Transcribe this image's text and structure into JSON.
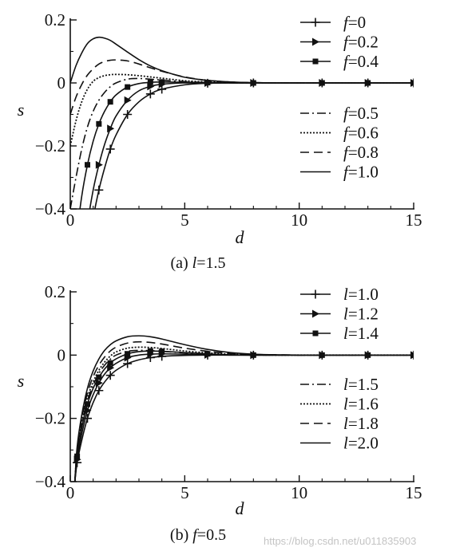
{
  "watermark": "https://blog.csdn.net/u011835903",
  "chart_data": [
    {
      "type": "line",
      "caption": "(a) l=1.5",
      "caption_prefix": "(a) ",
      "caption_var": "l",
      "caption_rest": "=1.5",
      "xlabel": "d",
      "ylabel": "s",
      "xlim": [
        0,
        15
      ],
      "ylim": [
        -0.4,
        0.2
      ],
      "xticks": [
        "0",
        "5",
        "10",
        "15"
      ],
      "yticks": [
        "0.2",
        "0",
        "−0.2",
        "−0.4"
      ],
      "grid": false,
      "legend_position": "top-right",
      "x": [
        0,
        0.25,
        0.5,
        0.75,
        1,
        1.25,
        1.5,
        1.75,
        2,
        2.5,
        3,
        3.5,
        4,
        5,
        6,
        7,
        8,
        9,
        10,
        11,
        12,
        13,
        14,
        15
      ],
      "series": [
        {
          "name": "f=0",
          "var": "f",
          "value": "=0",
          "marker": "plus",
          "dash": "",
          "values": [
            null,
            null,
            null,
            -0.55,
            -0.43,
            -0.34,
            -0.27,
            -0.21,
            -0.165,
            -0.1,
            -0.06,
            -0.035,
            -0.02,
            -0.006,
            -0.001,
            0,
            0,
            0,
            0,
            0,
            0,
            0,
            0,
            0
          ]
        },
        {
          "name": "f=0.2",
          "var": "f",
          "value": "=0.2",
          "marker": "triangle",
          "dash": "",
          "values": [
            null,
            null,
            -0.6,
            -0.45,
            -0.34,
            -0.26,
            -0.195,
            -0.145,
            -0.105,
            -0.055,
            -0.025,
            -0.011,
            -0.004,
            0,
            0,
            0,
            0,
            0,
            0,
            0,
            0,
            0,
            0,
            0
          ]
        },
        {
          "name": "f=0.4",
          "var": "f",
          "value": "=0.4",
          "marker": "square",
          "dash": "",
          "values": [
            null,
            -0.5,
            -0.36,
            -0.26,
            -0.185,
            -0.13,
            -0.09,
            -0.06,
            -0.038,
            -0.013,
            -0.002,
            0.002,
            0.003,
            0.002,
            0.001,
            0,
            0,
            0,
            0,
            0,
            0,
            0,
            0,
            0
          ]
        },
        {
          "name": "f=0.5",
          "var": "f",
          "value": "=0.5",
          "marker": "none",
          "dash": "11 4 2 4",
          "values": [
            -0.4,
            -0.3,
            -0.21,
            -0.14,
            -0.09,
            -0.055,
            -0.03,
            -0.012,
            0,
            0.012,
            0.014,
            0.012,
            0.009,
            0.004,
            0.001,
            0,
            0,
            0,
            0,
            0,
            0,
            0,
            0,
            0
          ]
        },
        {
          "name": "f=0.6",
          "var": "f",
          "value": "=0.6",
          "marker": "none",
          "dash": "2 2",
          "values": [
            -0.2,
            -0.12,
            -0.06,
            -0.02,
            0.005,
            0.017,
            0.023,
            0.026,
            0.027,
            0.026,
            0.023,
            0.019,
            0.015,
            0.007,
            0.003,
            0.001,
            0,
            0,
            0,
            0,
            0,
            0,
            0,
            0
          ]
        },
        {
          "name": "f=0.8",
          "var": "f",
          "value": "=0.8",
          "marker": "none",
          "dash": "11 6",
          "values": [
            -0.1,
            -0.045,
            -0.005,
            0.025,
            0.045,
            0.06,
            0.068,
            0.072,
            0.073,
            0.07,
            0.06,
            0.048,
            0.037,
            0.019,
            0.008,
            0.003,
            0.001,
            0,
            0,
            0,
            0,
            0,
            0,
            0
          ]
        },
        {
          "name": "f=1.0",
          "var": "f",
          "value": "=1.0",
          "marker": "none",
          "dash": "",
          "values": [
            0,
            0.055,
            0.095,
            0.125,
            0.14,
            0.145,
            0.142,
            0.135,
            0.123,
            0.098,
            0.074,
            0.054,
            0.039,
            0.018,
            0.008,
            0.003,
            0.001,
            0,
            0,
            0,
            0,
            0,
            0,
            0
          ]
        }
      ]
    },
    {
      "type": "line",
      "caption": "(b) f=0.5",
      "caption_prefix": "(b) ",
      "caption_var": "f",
      "caption_rest": "=0.5",
      "xlabel": "d",
      "ylabel": "s",
      "xlim": [
        0,
        15
      ],
      "ylim": [
        -0.4,
        0.2
      ],
      "xticks": [
        "0",
        "5",
        "10",
        "15"
      ],
      "yticks": [
        "0.2",
        "0",
        "−0.2",
        "−0.4"
      ],
      "grid": false,
      "legend_position": "top-right",
      "x": [
        0.2,
        0.3,
        0.5,
        0.75,
        1,
        1.25,
        1.5,
        1.75,
        2,
        2.5,
        3,
        3.5,
        4,
        5,
        6,
        7,
        8,
        9,
        10,
        11,
        12,
        13,
        14,
        15
      ],
      "series": [
        {
          "name": "l=1.0",
          "var": "l",
          "value": "=1.0",
          "marker": "plus",
          "dash": "",
          "values": [
            -0.4,
            -0.34,
            -0.27,
            -0.2,
            -0.15,
            -0.112,
            -0.085,
            -0.064,
            -0.048,
            -0.027,
            -0.015,
            -0.008,
            -0.004,
            -0.001,
            0,
            0,
            0,
            0,
            0,
            0,
            0,
            0,
            0,
            0
          ]
        },
        {
          "name": "l=1.2",
          "var": "l",
          "value": "=1.2",
          "marker": "triangle",
          "dash": "",
          "values": [
            -0.4,
            -0.33,
            -0.25,
            -0.175,
            -0.125,
            -0.088,
            -0.06,
            -0.04,
            -0.026,
            -0.008,
            0,
            0.003,
            0.004,
            0.003,
            0.001,
            0,
            0,
            0,
            0,
            0,
            0,
            0,
            0,
            0
          ]
        },
        {
          "name": "l=1.4",
          "var": "l",
          "value": "=1.4",
          "marker": "square",
          "dash": "",
          "values": [
            -0.4,
            -0.32,
            -0.23,
            -0.155,
            -0.105,
            -0.07,
            -0.044,
            -0.025,
            -0.012,
            0.004,
            0.011,
            0.013,
            0.012,
            0.008,
            0.004,
            0.001,
            0,
            0,
            0,
            0,
            0,
            0,
            0,
            0
          ]
        },
        {
          "name": "l=1.5",
          "var": "l",
          "value": "=1.5",
          "marker": "none",
          "dash": "11 4 2 4",
          "values": [
            -0.4,
            -0.31,
            -0.22,
            -0.145,
            -0.095,
            -0.058,
            -0.032,
            -0.013,
            0,
            0.012,
            0.015,
            0.014,
            0.012,
            0.007,
            0.003,
            0.001,
            0,
            0,
            0,
            0,
            0,
            0,
            0,
            0
          ]
        },
        {
          "name": "l=1.6",
          "var": "l",
          "value": "=1.6",
          "marker": "none",
          "dash": "2 2",
          "values": [
            -0.4,
            -0.305,
            -0.21,
            -0.135,
            -0.085,
            -0.048,
            -0.022,
            -0.003,
            0.01,
            0.022,
            0.025,
            0.024,
            0.021,
            0.013,
            0.007,
            0.003,
            0.001,
            0,
            0,
            0,
            0,
            0,
            0,
            0
          ]
        },
        {
          "name": "l=1.8",
          "var": "l",
          "value": "=1.8",
          "marker": "none",
          "dash": "11 6",
          "values": [
            -0.4,
            -0.3,
            -0.2,
            -0.12,
            -0.068,
            -0.032,
            -0.006,
            0.013,
            0.025,
            0.038,
            0.042,
            0.04,
            0.035,
            0.022,
            0.012,
            0.005,
            0.002,
            0.001,
            0,
            0,
            0,
            0,
            0,
            0
          ]
        },
        {
          "name": "l=2.0",
          "var": "l",
          "value": "=2.0",
          "marker": "none",
          "dash": "",
          "values": [
            -0.4,
            -0.29,
            -0.19,
            -0.105,
            -0.05,
            -0.012,
            0.015,
            0.033,
            0.045,
            0.058,
            0.061,
            0.058,
            0.051,
            0.033,
            0.018,
            0.008,
            0.003,
            0.001,
            0,
            0,
            0,
            0,
            0,
            0
          ]
        }
      ]
    }
  ]
}
